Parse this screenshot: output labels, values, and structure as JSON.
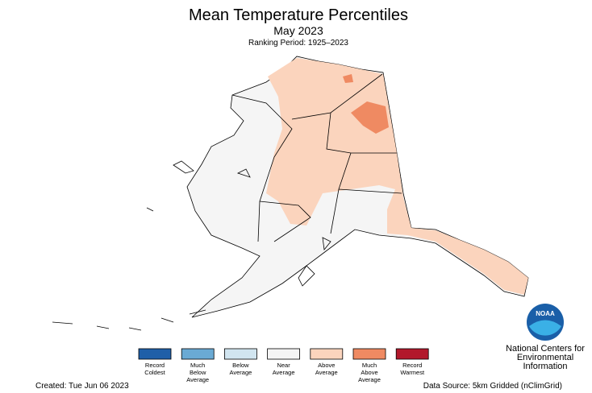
{
  "header": {
    "title": "Mean Temperature Percentiles",
    "subtitle": "May 2023",
    "ranking_period": "Ranking Period: 1925–2023"
  },
  "legend": [
    {
      "label": [
        "Record",
        "Coldest"
      ],
      "color": "#1f5fa8"
    },
    {
      "label": [
        "Much",
        "Below",
        "Average"
      ],
      "color": "#6aaad4"
    },
    {
      "label": [
        "Below",
        "Average"
      ],
      "color": "#d1e5f0"
    },
    {
      "label": [
        "Near",
        "Average"
      ],
      "color": "#f5f5f5"
    },
    {
      "label": [
        "Above",
        "Average"
      ],
      "color": "#fbd4bd"
    },
    {
      "label": [
        "Much",
        "Above",
        "Average"
      ],
      "color": "#ef8a62"
    },
    {
      "label": [
        "Record",
        "Warmest"
      ],
      "color": "#b2182b"
    }
  ],
  "logo_text": "NOAA",
  "organization": [
    "National Centers for",
    "Environmental",
    "Information"
  ],
  "footer": {
    "created": "Created: Tue Jun 06 2023",
    "source": "Data Source: 5km Gridded (nClimGrid)"
  }
}
